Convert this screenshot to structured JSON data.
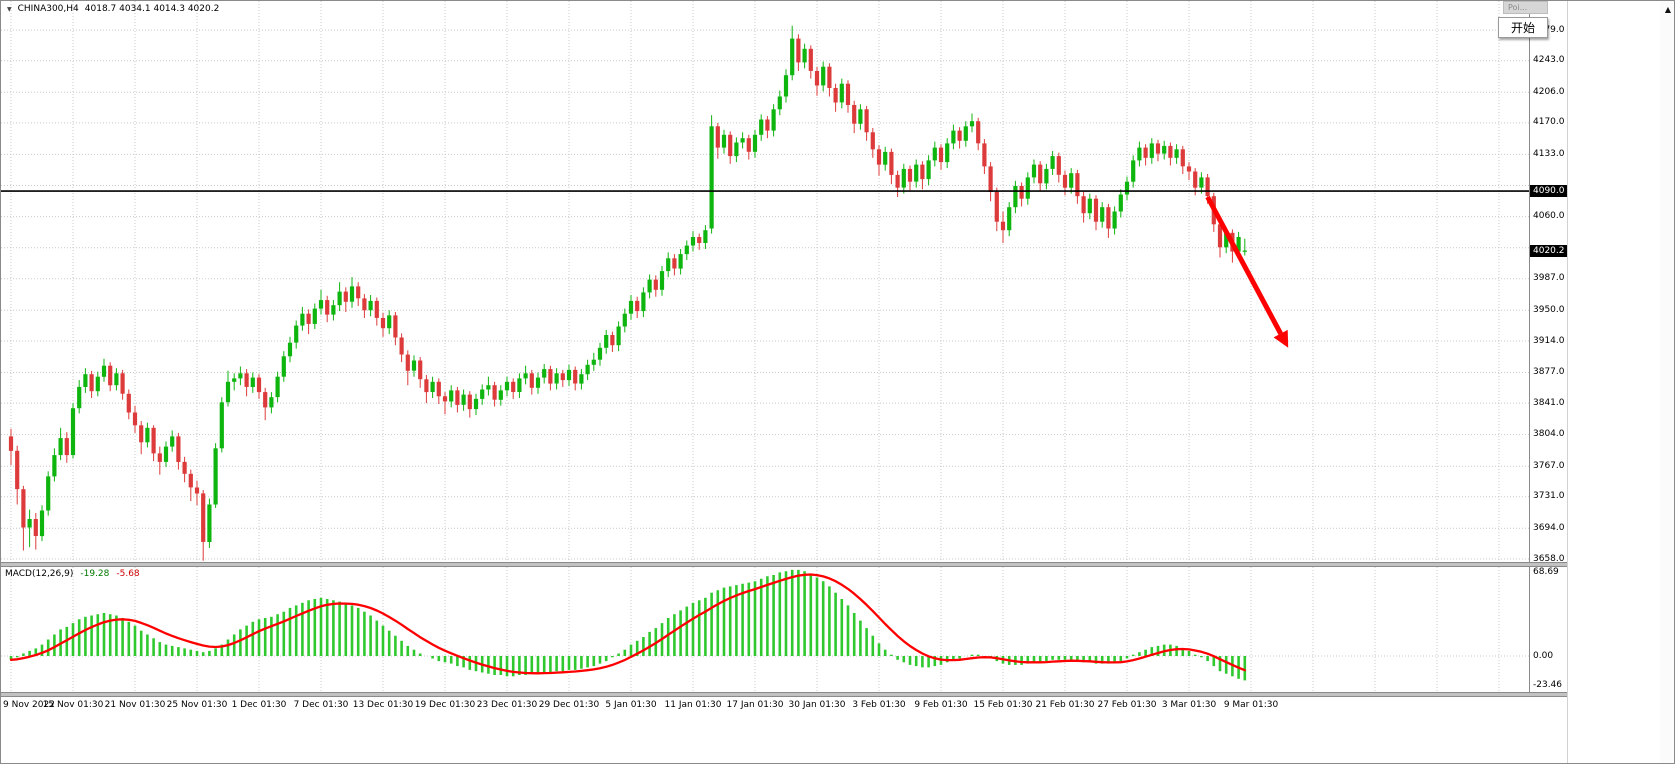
{
  "ui": {
    "icons": {
      "symbol_dropdown": "▼",
      "scroll_up": "▲"
    },
    "poi_tooltip": "Poi...",
    "start_button": "开始"
  },
  "chart_data": {
    "type": "candlestick",
    "symbol_period": "CHINA300,H4",
    "ohlc_text": "4018.7 4034.1 4014.3 4020.2",
    "price_axis": {
      "ylim": [
        3658,
        4292
      ],
      "labels": [
        4279.0,
        4243.0,
        4206.0,
        4170.0,
        4133.0,
        4060.0,
        3987.0,
        3950.0,
        3914.0,
        3877.0,
        3841.0,
        3804.0,
        3767.0,
        3731.0,
        3694.0,
        3658.0
      ],
      "grid_extra": [
        4096.5,
        4023.5
      ],
      "hline_tag": "4090.0",
      "last_tag": "4020.2"
    },
    "time_labels": [
      "9 Nov 2022",
      "15 Nov 01:30",
      "21 Nov 01:30",
      "25 Nov 01:30",
      "1 Dec 01:30",
      "7 Dec 01:30",
      "13 Dec 01:30",
      "19 Dec 01:30",
      "23 Dec 01:30",
      "29 Dec 01:30",
      "5 Jan 01:30",
      "11 Jan 01:30",
      "17 Jan 01:30",
      "30 Jan 01:30",
      "3 Feb 01:30",
      "9 Feb 01:30",
      "15 Feb 01:30",
      "21 Feb 01:30",
      "27 Feb 01:30",
      "3 Mar 01:30",
      "9 Mar 01:30"
    ],
    "annotations": {
      "hline_price": 4090.0,
      "last_price": 4020.2,
      "arrow": {
        "from_index": 193,
        "from_price": 4083,
        "to_index": 206,
        "to_price": 3906
      }
    },
    "candles": [
      [
        3802,
        3811,
        3768,
        3785
      ],
      [
        3785,
        3791,
        3722,
        3740
      ],
      [
        3740,
        3744,
        3668,
        3695
      ],
      [
        3695,
        3716,
        3672,
        3705
      ],
      [
        3705,
        3712,
        3669,
        3685
      ],
      [
        3685,
        3721,
        3679,
        3715
      ],
      [
        3715,
        3761,
        3709,
        3755
      ],
      [
        3755,
        3788,
        3749,
        3780
      ],
      [
        3780,
        3812,
        3774,
        3800
      ],
      [
        3800,
        3807,
        3771,
        3780
      ],
      [
        3780,
        3841,
        3776,
        3835
      ],
      [
        3835,
        3868,
        3829,
        3860
      ],
      [
        3860,
        3882,
        3853,
        3875
      ],
      [
        3875,
        3879,
        3847,
        3855
      ],
      [
        3855,
        3878,
        3849,
        3872
      ],
      [
        3872,
        3893,
        3866,
        3885
      ],
      [
        3885,
        3889,
        3855,
        3862
      ],
      [
        3862,
        3882,
        3856,
        3876
      ],
      [
        3876,
        3880,
        3845,
        3852
      ],
      [
        3852,
        3857,
        3822,
        3830
      ],
      [
        3830,
        3838,
        3806,
        3815
      ],
      [
        3815,
        3820,
        3781,
        3795
      ],
      [
        3795,
        3818,
        3789,
        3812
      ],
      [
        3812,
        3815,
        3773,
        3782
      ],
      [
        3782,
        3790,
        3757,
        3772
      ],
      [
        3772,
        3796,
        3766,
        3790
      ],
      [
        3790,
        3809,
        3784,
        3802
      ],
      [
        3802,
        3806,
        3763,
        3772
      ],
      [
        3772,
        3778,
        3748,
        3758
      ],
      [
        3758,
        3763,
        3726,
        3742
      ],
      [
        3742,
        3750,
        3721,
        3735
      ],
      [
        3735,
        3739,
        3656,
        3678
      ],
      [
        3678,
        3729,
        3671,
        3722
      ],
      [
        3722,
        3794,
        3718,
        3788
      ],
      [
        3788,
        3848,
        3783,
        3842
      ],
      [
        3842,
        3879,
        3837,
        3866
      ],
      [
        3866,
        3876,
        3856,
        3870
      ],
      [
        3870,
        3884,
        3862,
        3876
      ],
      [
        3876,
        3881,
        3849,
        3860
      ],
      [
        3860,
        3877,
        3853,
        3871
      ],
      [
        3871,
        3875,
        3846,
        3854
      ],
      [
        3854,
        3859,
        3821,
        3836
      ],
      [
        3836,
        3854,
        3829,
        3848
      ],
      [
        3848,
        3878,
        3842,
        3872
      ],
      [
        3872,
        3902,
        3866,
        3896
      ],
      [
        3896,
        3919,
        3889,
        3912
      ],
      [
        3912,
        3938,
        3905,
        3932
      ],
      [
        3932,
        3954,
        3926,
        3946
      ],
      [
        3946,
        3951,
        3922,
        3934
      ],
      [
        3934,
        3958,
        3928,
        3952
      ],
      [
        3952,
        3974,
        3945,
        3962
      ],
      [
        3962,
        3967,
        3936,
        3945
      ],
      [
        3945,
        3962,
        3938,
        3956
      ],
      [
        3956,
        3983,
        3949,
        3972
      ],
      [
        3972,
        3977,
        3948,
        3960
      ],
      [
        3960,
        3989,
        3953,
        3978
      ],
      [
        3978,
        3983,
        3955,
        3964
      ],
      [
        3964,
        3969,
        3941,
        3950
      ],
      [
        3950,
        3968,
        3943,
        3961
      ],
      [
        3961,
        3965,
        3932,
        3941
      ],
      [
        3941,
        3947,
        3919,
        3929
      ],
      [
        3929,
        3950,
        3922,
        3944
      ],
      [
        3944,
        3948,
        3909,
        3918
      ],
      [
        3918,
        3923,
        3889,
        3898
      ],
      [
        3898,
        3903,
        3862,
        3879
      ],
      [
        3879,
        3897,
        3872,
        3891
      ],
      [
        3891,
        3895,
        3859,
        3869
      ],
      [
        3869,
        3874,
        3841,
        3854
      ],
      [
        3854,
        3872,
        3847,
        3866
      ],
      [
        3866,
        3870,
        3840,
        3849
      ],
      [
        3849,
        3854,
        3828,
        3843
      ],
      [
        3843,
        3862,
        3836,
        3856
      ],
      [
        3856,
        3860,
        3830,
        3839
      ],
      [
        3839,
        3857,
        3832,
        3851
      ],
      [
        3851,
        3855,
        3824,
        3834
      ],
      [
        3834,
        3852,
        3827,
        3846
      ],
      [
        3846,
        3863,
        3839,
        3857
      ],
      [
        3857,
        3872,
        3850,
        3862
      ],
      [
        3862,
        3866,
        3837,
        3845
      ],
      [
        3845,
        3862,
        3838,
        3856
      ],
      [
        3856,
        3872,
        3849,
        3866
      ],
      [
        3866,
        3870,
        3846,
        3854
      ],
      [
        3854,
        3876,
        3847,
        3870
      ],
      [
        3870,
        3885,
        3863,
        3876
      ],
      [
        3876,
        3880,
        3851,
        3859
      ],
      [
        3859,
        3877,
        3852,
        3871
      ],
      [
        3871,
        3887,
        3864,
        3881
      ],
      [
        3881,
        3885,
        3856,
        3864
      ],
      [
        3864,
        3882,
        3857,
        3876
      ],
      [
        3876,
        3880,
        3860,
        3868
      ],
      [
        3868,
        3886,
        3861,
        3880
      ],
      [
        3880,
        3884,
        3856,
        3864
      ],
      [
        3864,
        3881,
        3857,
        3875
      ],
      [
        3875,
        3892,
        3868,
        3886
      ],
      [
        3886,
        3900,
        3879,
        3892
      ],
      [
        3892,
        3912,
        3885,
        3906
      ],
      [
        3906,
        3927,
        3899,
        3921
      ],
      [
        3921,
        3925,
        3901,
        3909
      ],
      [
        3909,
        3937,
        3902,
        3931
      ],
      [
        3931,
        3952,
        3924,
        3946
      ],
      [
        3946,
        3968,
        3939,
        3961
      ],
      [
        3961,
        3966,
        3941,
        3949
      ],
      [
        3949,
        3977,
        3942,
        3971
      ],
      [
        3971,
        3992,
        3964,
        3986
      ],
      [
        3986,
        3991,
        3966,
        3974
      ],
      [
        3974,
        4002,
        3967,
        3996
      ],
      [
        3996,
        4018,
        3989,
        4011
      ],
      [
        4011,
        4016,
        3991,
        3999
      ],
      [
        3999,
        4022,
        3992,
        4016
      ],
      [
        4016,
        4032,
        4009,
        4026
      ],
      [
        4026,
        4043,
        4019,
        4036
      ],
      [
        4036,
        4040,
        4021,
        4029
      ],
      [
        4029,
        4050,
        4022,
        4044
      ],
      [
        4046,
        4179,
        4040,
        4166
      ],
      [
        4166,
        4170,
        4128,
        4141
      ],
      [
        4141,
        4162,
        4134,
        4156
      ],
      [
        4156,
        4160,
        4122,
        4131
      ],
      [
        4131,
        4153,
        4124,
        4147
      ],
      [
        4147,
        4159,
        4140,
        4152
      ],
      [
        4152,
        4156,
        4127,
        4136
      ],
      [
        4136,
        4162,
        4129,
        4156
      ],
      [
        4156,
        4180,
        4149,
        4174
      ],
      [
        4174,
        4178,
        4152,
        4161
      ],
      [
        4161,
        4192,
        4154,
        4186
      ],
      [
        4186,
        4208,
        4179,
        4201
      ],
      [
        4201,
        4233,
        4194,
        4226
      ],
      [
        4226,
        4284,
        4220,
        4269
      ],
      [
        4269,
        4274,
        4231,
        4241
      ],
      [
        4241,
        4263,
        4234,
        4257
      ],
      [
        4257,
        4261,
        4222,
        4231
      ],
      [
        4231,
        4236,
        4202,
        4214
      ],
      [
        4214,
        4242,
        4207,
        4236
      ],
      [
        4236,
        4240,
        4201,
        4211
      ],
      [
        4211,
        4216,
        4183,
        4194
      ],
      [
        4194,
        4222,
        4187,
        4216
      ],
      [
        4216,
        4220,
        4182,
        4191
      ],
      [
        4191,
        4196,
        4158,
        4169
      ],
      [
        4169,
        4192,
        4162,
        4186
      ],
      [
        4186,
        4190,
        4149,
        4159
      ],
      [
        4159,
        4164,
        4129,
        4139
      ],
      [
        4139,
        4144,
        4108,
        4121
      ],
      [
        4121,
        4142,
        4114,
        4136
      ],
      [
        4136,
        4140,
        4098,
        4109
      ],
      [
        4109,
        4114,
        4083,
        4094
      ],
      [
        4094,
        4122,
        4087,
        4116
      ],
      [
        4116,
        4120,
        4091,
        4101
      ],
      [
        4101,
        4127,
        4094,
        4121
      ],
      [
        4121,
        4125,
        4092,
        4104
      ],
      [
        4104,
        4132,
        4097,
        4126
      ],
      [
        4126,
        4148,
        4119,
        4141
      ],
      [
        4141,
        4145,
        4115,
        4124
      ],
      [
        4124,
        4152,
        4117,
        4146
      ],
      [
        4146,
        4168,
        4139,
        4161
      ],
      [
        4161,
        4165,
        4140,
        4149
      ],
      [
        4149,
        4172,
        4142,
        4166
      ],
      [
        4166,
        4181,
        4159,
        4172
      ],
      [
        4172,
        4176,
        4138,
        4146
      ],
      [
        4146,
        4151,
        4110,
        4119
      ],
      [
        4119,
        4124,
        4078,
        4089
      ],
      [
        4089,
        4094,
        4043,
        4054
      ],
      [
        4054,
        4066,
        4029,
        4044
      ],
      [
        4044,
        4077,
        4037,
        4071
      ],
      [
        4071,
        4102,
        4064,
        4096
      ],
      [
        4096,
        4100,
        4072,
        4081
      ],
      [
        4081,
        4112,
        4074,
        4106
      ],
      [
        4106,
        4127,
        4099,
        4121
      ],
      [
        4121,
        4125,
        4090,
        4099
      ],
      [
        4099,
        4122,
        4092,
        4116
      ],
      [
        4116,
        4137,
        4109,
        4131
      ],
      [
        4131,
        4135,
        4100,
        4109
      ],
      [
        4109,
        4114,
        4085,
        4094
      ],
      [
        4094,
        4117,
        4087,
        4111
      ],
      [
        4111,
        4115,
        4075,
        4084
      ],
      [
        4084,
        4089,
        4053,
        4064
      ],
      [
        4064,
        4087,
        4057,
        4081
      ],
      [
        4081,
        4085,
        4044,
        4054
      ],
      [
        4054,
        4077,
        4047,
        4071
      ],
      [
        4071,
        4075,
        4035,
        4046
      ],
      [
        4046,
        4072,
        4039,
        4066
      ],
      [
        4066,
        4092,
        4059,
        4086
      ],
      [
        4086,
        4107,
        4079,
        4101
      ],
      [
        4101,
        4132,
        4094,
        4126
      ],
      [
        4126,
        4148,
        4119,
        4141
      ],
      [
        4141,
        4145,
        4120,
        4129
      ],
      [
        4129,
        4152,
        4122,
        4146
      ],
      [
        4146,
        4150,
        4125,
        4134
      ],
      [
        4134,
        4149,
        4127,
        4143
      ],
      [
        4143,
        4147,
        4120,
        4129
      ],
      [
        4129,
        4145,
        4122,
        4139
      ],
      [
        4139,
        4143,
        4110,
        4119
      ],
      [
        4119,
        4124,
        4103,
        4113
      ],
      [
        4113,
        4117,
        4085,
        4094
      ],
      [
        4094,
        4112,
        4087,
        4106
      ],
      [
        4106,
        4110,
        4075,
        4084
      ],
      [
        4084,
        4088,
        4042,
        4051
      ],
      [
        4051,
        4056,
        4012,
        4024
      ],
      [
        4024,
        4047,
        4017,
        4041
      ],
      [
        4041,
        4045,
        4006,
        4019
      ],
      [
        4019,
        4042,
        4012,
        4036
      ],
      [
        4018.7,
        4034.1,
        4014.3,
        4020.2
      ]
    ],
    "macd": {
      "label": "MACD(12,26,9)",
      "main_value": "-19.28",
      "signal_value": "-5.68",
      "scale_labels": [
        "68.69",
        "0.00",
        "-23.46"
      ],
      "ylim": [
        -23.46,
        68.69
      ],
      "signal_period": 9,
      "histogram": [
        -3,
        -1,
        2,
        4,
        6,
        9,
        13,
        17,
        21,
        23,
        26,
        29,
        31,
        32,
        33,
        34,
        33,
        32,
        30,
        27,
        24,
        20,
        17,
        14,
        11,
        9,
        8,
        7,
        6,
        5,
        4,
        3,
        4,
        6,
        9,
        13,
        17,
        21,
        24,
        27,
        29,
        30,
        31,
        33,
        35,
        38,
        40,
        42,
        44,
        45,
        46,
        45,
        44,
        43,
        41,
        40,
        38,
        35,
        32,
        28,
        24,
        20,
        16,
        12,
        8,
        5,
        2,
        0,
        -2,
        -4,
        -5,
        -6,
        -8,
        -9,
        -11,
        -12,
        -13,
        -14,
        -15,
        -15,
        -16,
        -16,
        -15,
        -15,
        -14,
        -14,
        -13,
        -13,
        -12,
        -12,
        -11,
        -11,
        -10,
        -9,
        -8,
        -6,
        -4,
        -1,
        2,
        5,
        9,
        12,
        15,
        19,
        22,
        26,
        30,
        33,
        36,
        39,
        42,
        44,
        46,
        50,
        52,
        54,
        55,
        56,
        57,
        58,
        59,
        61,
        63,
        64,
        66,
        67,
        68,
        68,
        67,
        65,
        62,
        59,
        55,
        50,
        45,
        40,
        34,
        28,
        22,
        16,
        10,
        5,
        1,
        -3,
        -5,
        -7,
        -8,
        -9,
        -9,
        -8,
        -7,
        -5,
        -3,
        -2,
        0,
        1,
        1,
        0,
        -2,
        -4,
        -6,
        -7,
        -7,
        -7,
        -6,
        -5,
        -5,
        -4,
        -3,
        -3,
        -3,
        -3,
        -4,
        -5,
        -5,
        -6,
        -6,
        -6,
        -5,
        -4,
        -2,
        1,
        3,
        5,
        7,
        8,
        9,
        9,
        8,
        6,
        4,
        1,
        -1,
        -4,
        -8,
        -12,
        -14,
        -16,
        -18,
        -19.28
      ]
    },
    "colors": {
      "up": "#0fb50f",
      "down": "#dd3b3b",
      "macd_hist": "#2fc92f",
      "signal": "#ff0000",
      "grid": "#c9c9c9",
      "hline": "#000000",
      "arrow": "#fe0000",
      "tag_bg": "#000000",
      "tag_fg": "#ffffff"
    }
  }
}
